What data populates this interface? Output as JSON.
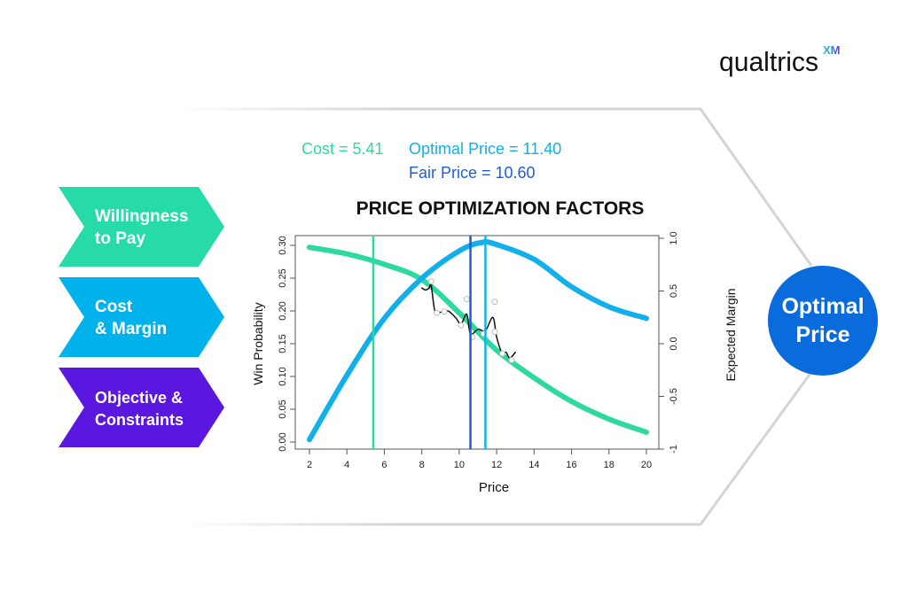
{
  "logo": {
    "text": "qualtrics",
    "suffix": "XM"
  },
  "annotations": {
    "cost": "Cost = 5.41",
    "optimal_price": "Optimal Price = 11.40",
    "fair_price": "Fair Price = 10.60"
  },
  "factors": [
    {
      "line1": "Willingness",
      "line2": "to Pay",
      "color": "#26dba8"
    },
    {
      "line1": "Cost",
      "line2": "& Margin",
      "color": "#00b2ec"
    },
    {
      "line1": "Objective &",
      "line2": "Constraints",
      "color": "#5a17e0"
    }
  ],
  "result": {
    "line1": "Optimal",
    "line2": "Price",
    "color": "#0a6bdc"
  },
  "chart_data": {
    "type": "line",
    "title": "PRICE OPTIMIZATION FACTORS",
    "xlabel": "Price",
    "ylabel": "Win Probability",
    "y2label": "Expected Margin",
    "xlim": [
      2,
      20
    ],
    "ylim": [
      0,
      0.3
    ],
    "y2lim": [
      -1,
      1
    ],
    "xticks": [
      "2",
      "4",
      "6",
      "8",
      "10",
      "12",
      "14",
      "16",
      "18",
      "20"
    ],
    "yticks": [
      "0.00",
      "0.05",
      "0.10",
      "0.15",
      "0.20",
      "0.25",
      "0.30"
    ],
    "y2ticks": [
      "-1",
      "-0.5",
      "0.0",
      "0.5",
      "1.0"
    ],
    "grid": false,
    "series": [
      {
        "axis": "left",
        "color": "#2ed9a0",
        "x": [
          2,
          4,
          6,
          8,
          10,
          12,
          14,
          16,
          18,
          20
        ],
        "y": [
          0.297,
          0.287,
          0.271,
          0.248,
          0.197,
          0.14,
          0.098,
          0.062,
          0.035,
          0.015
        ]
      },
      {
        "axis": "right",
        "color": "#12b0ea",
        "x": [
          2,
          4,
          6,
          8,
          10,
          11.2,
          12,
          14,
          16,
          18,
          20
        ],
        "y": [
          -0.91,
          -0.3,
          0.24,
          0.62,
          0.88,
          0.96,
          0.94,
          0.8,
          0.54,
          0.35,
          0.24
        ]
      },
      {
        "axis": "left",
        "color": "#111111",
        "x": [
          8.0,
          8.2,
          8.4,
          8.5,
          8.7,
          9.0,
          9.4,
          9.8,
          10.1,
          10.4,
          10.6,
          11.0,
          11.4,
          11.8,
          12.0,
          12.3,
          12.5,
          12.7,
          13.0
        ],
        "y": [
          0.235,
          0.232,
          0.235,
          0.24,
          0.2,
          0.198,
          0.2,
          0.19,
          0.18,
          0.195,
          0.165,
          0.172,
          0.17,
          0.19,
          0.16,
          0.135,
          0.137,
          0.128,
          0.137
        ]
      }
    ],
    "points": {
      "x": [
        8.5,
        8.8,
        9.2,
        10.1,
        10.4,
        10.7,
        11.3,
        11.9,
        11.9,
        12.3,
        12.8
      ],
      "y": [
        0.245,
        0.197,
        0.199,
        0.178,
        0.218,
        0.16,
        0.165,
        0.214,
        0.168,
        0.135,
        0.125
      ]
    },
    "vlines": [
      {
        "x": 5.41,
        "color": "#2ed9a0"
      },
      {
        "x": 10.6,
        "color": "#1a5fd9"
      },
      {
        "x": 11.4,
        "color": "#12b5ea"
      }
    ]
  }
}
